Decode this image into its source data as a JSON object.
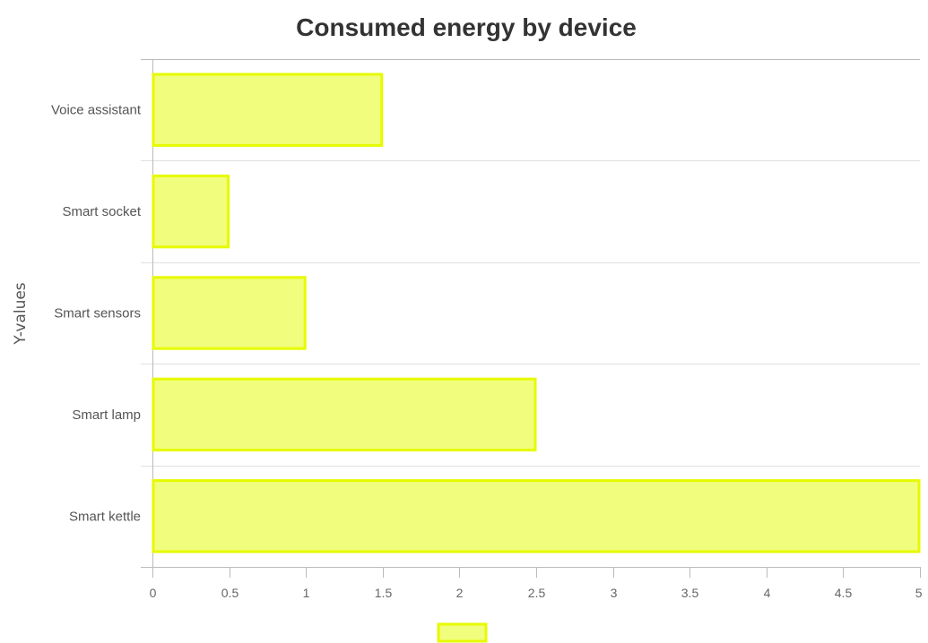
{
  "chart_data": {
    "type": "bar",
    "orientation": "horizontal",
    "title": "Consumed energy by device",
    "xlabel": "",
    "ylabel": "Y-values",
    "categories": [
      "Voice assistant",
      "Smart socket",
      "Smart sensors",
      "Smart lamp",
      "Smart kettle"
    ],
    "series": [
      {
        "values": [
          1.5,
          0.5,
          1,
          2.5,
          5
        ]
      }
    ],
    "xlim": [
      0,
      5
    ],
    "xticks": [
      "0",
      "0.5",
      "1",
      "1.5",
      "2",
      "2.5",
      "3",
      "3.5",
      "4",
      "4.5",
      "5"
    ],
    "grid": "horizontal separators",
    "legend": "bottom-center",
    "colors": {
      "bar_fill": "#f1fd7d",
      "bar_stroke": "#e6fa00",
      "grid": "#e0e0e0",
      "axis": "#bbbbbb"
    }
  }
}
